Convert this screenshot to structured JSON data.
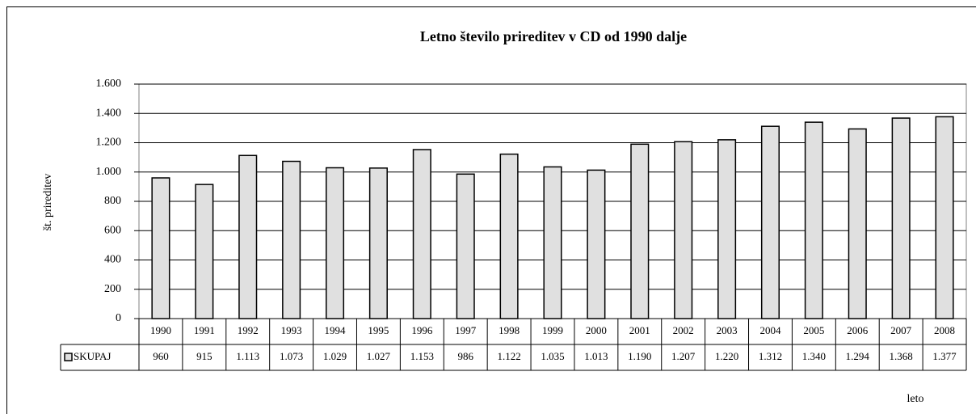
{
  "chart_data": {
    "type": "bar",
    "title": "Letno število prireditev v CD od 1990 dalje",
    "y_axis_label": "št. prireditev",
    "x_axis_label": "leto",
    "categories": [
      "1990",
      "1991",
      "1992",
      "1993",
      "1994",
      "1995",
      "1996",
      "1997",
      "1998",
      "1999",
      "2000",
      "2001",
      "2002",
      "2003",
      "2004",
      "2005",
      "2006",
      "2007",
      "2008"
    ],
    "series": [
      {
        "name": "SKUPAJ",
        "color": "#e0e0e0",
        "values": [
          960,
          915,
          1113,
          1073,
          1029,
          1027,
          1153,
          986,
          1122,
          1035,
          1013,
          1190,
          1207,
          1220,
          1312,
          1340,
          1294,
          1368,
          1377
        ],
        "value_labels": [
          "960",
          "915",
          "1.113",
          "1.073",
          "1.029",
          "1.027",
          "1.153",
          "986",
          "1.122",
          "1.035",
          "1.013",
          "1.190",
          "1.207",
          "1.220",
          "1.312",
          "1.340",
          "1.294",
          "1.368",
          "1.377"
        ]
      }
    ],
    "ylim": [
      0,
      1600
    ],
    "yticks": [
      0,
      200,
      400,
      600,
      800,
      {
        "value": 1000,
        "label": "1.000"
      },
      {
        "value": 1200,
        "label": "1.200"
      },
      {
        "value": 1400,
        "label": "1.400"
      },
      {
        "value": 1600,
        "label": "1.600"
      }
    ],
    "grid": true
  }
}
